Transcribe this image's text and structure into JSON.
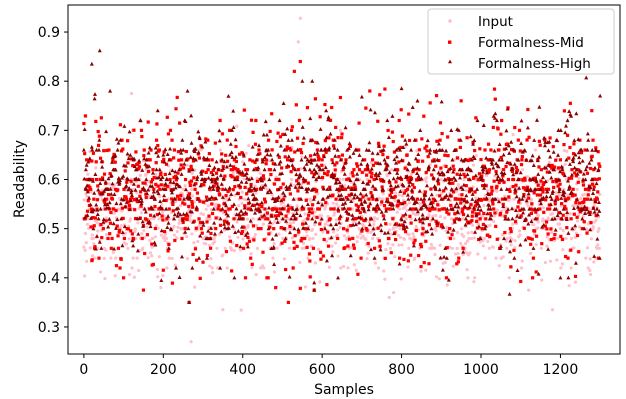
{
  "chart_data": {
    "type": "scatter",
    "title": "",
    "xlabel": "Samples",
    "ylabel": "Readability",
    "xlim": [
      -40,
      1350
    ],
    "ylim": [
      0.245,
      0.955
    ],
    "x_ticks": [
      0,
      200,
      400,
      600,
      800,
      1000,
      1200
    ],
    "x_tick_labels": [
      "0",
      "200",
      "400",
      "600",
      "800",
      "1000",
      "1200"
    ],
    "y_ticks": [
      0.3,
      0.4,
      0.5,
      0.6,
      0.7,
      0.8,
      0.9
    ],
    "y_tick_labels": [
      "0.3",
      "0.4",
      "0.5",
      "0.6",
      "0.7",
      "0.8",
      "0.9"
    ],
    "grid": false,
    "legend_position": "top-right",
    "n_samples": 1300,
    "series": [
      {
        "name": "Input",
        "marker": "circle",
        "color": "#ffc0cb",
        "distribution": {
          "center": 0.525,
          "spread": 0.055,
          "min": 0.27,
          "max": 0.93
        },
        "highlights": [
          [
            270,
            0.27
          ],
          [
            545,
            0.928
          ],
          [
            540,
            0.88
          ],
          [
            120,
            0.775
          ],
          [
            1180,
            0.335
          ],
          [
            1120,
            0.375
          ],
          [
            350,
            0.335
          ],
          [
            780,
            0.37
          ]
        ]
      },
      {
        "name": "Formalness-Mid",
        "marker": "square",
        "color": "#ff0000",
        "distribution": {
          "center": 0.575,
          "spread": 0.07,
          "min": 0.35,
          "max": 0.84
        },
        "highlights": [
          [
            545,
            0.84
          ],
          [
            530,
            0.82
          ],
          [
            515,
            0.35
          ],
          [
            265,
            0.35
          ],
          [
            150,
            0.375
          ],
          [
            580,
            0.375
          ],
          [
            20,
            0.435
          ]
        ]
      },
      {
        "name": "Formalness-High",
        "marker": "triangle",
        "color": "#8b0000",
        "distribution": {
          "center": 0.585,
          "spread": 0.065,
          "min": 0.35,
          "max": 0.865
        },
        "highlights": [
          [
            40,
            0.862
          ],
          [
            20,
            0.835
          ],
          [
            550,
            0.8
          ],
          [
            575,
            0.8
          ],
          [
            700,
            0.768
          ],
          [
            800,
            0.785
          ],
          [
            1300,
            0.77
          ],
          [
            840,
            0.76
          ],
          [
            265,
            0.35
          ],
          [
            580,
            0.375
          ],
          [
            580,
            0.39
          ],
          [
            1200,
            0.4
          ],
          [
            1220,
            0.4
          ],
          [
            640,
            0.4
          ]
        ]
      }
    ]
  }
}
